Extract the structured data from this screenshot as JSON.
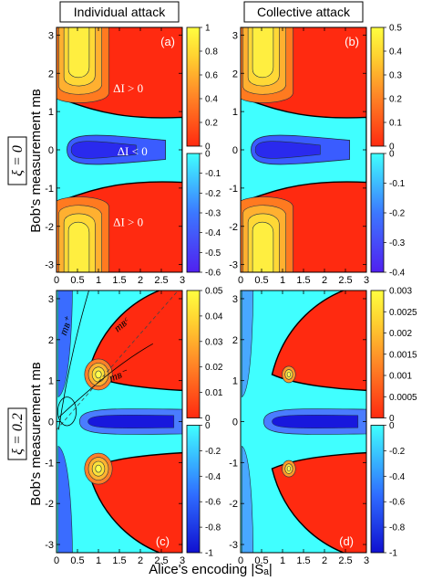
{
  "column_titles": [
    "Individual attack",
    "Collective attack"
  ],
  "row_labels": [
    "ξ = 0",
    "ξ = 0.2"
  ],
  "x_axis_label": "Alice's encoding |Sₐ|",
  "y_axis_label": "Bob's measurement mʙ",
  "colors": {
    "red": "#ff2a10",
    "cyan": "#40ffff",
    "blue": "#2020f0",
    "yellow": "#ffee30",
    "orange": "#f09030",
    "contour": "#203040",
    "sep": "#000000"
  },
  "chart_data": [
    {
      "type": "heatmap",
      "panel": "(a)",
      "title": "Individual attack",
      "row_label": "ξ = 0",
      "xlim": [
        0,
        3
      ],
      "ylim": [
        -3.2,
        3.2
      ],
      "x_ticks": [
        "0",
        "0.5",
        "1",
        "1.5",
        "2",
        "2.5",
        "3"
      ],
      "y_ticks": [
        "-3",
        "-2",
        "-1",
        "0",
        "1",
        "2",
        "3"
      ],
      "colorbar_positive": {
        "ticks": [
          "0",
          "0.2",
          "0.4",
          "0.6",
          "0.8",
          "1"
        ],
        "range": [
          0,
          1
        ]
      },
      "colorbar_negative": {
        "ticks": [
          "0",
          "-0.1",
          "-0.2",
          "-0.3",
          "-0.4",
          "-0.5",
          "-0.6"
        ],
        "range": [
          -0.6,
          0
        ]
      },
      "annotations": [
        "ΔI > 0",
        "ΔI < 0",
        "ΔI > 0"
      ]
    },
    {
      "type": "heatmap",
      "panel": "(b)",
      "title": "Collective attack",
      "row_label": "ξ = 0",
      "xlim": [
        0,
        3
      ],
      "ylim": [
        -3.2,
        3.2
      ],
      "x_ticks": [
        "0",
        "0.5",
        "1",
        "1.5",
        "2",
        "2.5",
        "3"
      ],
      "y_ticks": [
        "-3",
        "-2",
        "-1",
        "0",
        "1",
        "2",
        "3"
      ],
      "colorbar_positive": {
        "ticks": [
          "0",
          "0.1",
          "0.2",
          "0.3",
          "0.4",
          "0.5"
        ],
        "range": [
          0,
          0.5
        ]
      },
      "colorbar_negative": {
        "ticks": [
          "0",
          "-0.1",
          "-0.2",
          "-0.3",
          "-0.4"
        ],
        "range": [
          -0.4,
          0
        ]
      },
      "annotations": []
    },
    {
      "type": "heatmap",
      "panel": "(c)",
      "title": "Individual attack",
      "row_label": "ξ = 0.2",
      "xlim": [
        0,
        3
      ],
      "ylim": [
        -3.2,
        3.2
      ],
      "x_ticks": [
        "0",
        "0.5",
        "1",
        "1.5",
        "2",
        "2.5",
        "3"
      ],
      "y_ticks": [
        "-3",
        "-2",
        "-1",
        "0",
        "1",
        "2",
        "3"
      ],
      "colorbar_positive": {
        "ticks": [
          "0",
          "0.01",
          "0.02",
          "0.03",
          "0.04",
          "0.05"
        ],
        "range": [
          0,
          0.05
        ]
      },
      "colorbar_negative": {
        "ticks": [
          "0",
          "-0.2",
          "-0.4",
          "-0.6",
          "-0.8",
          "-1"
        ],
        "range": [
          -1,
          0
        ]
      },
      "annotations": [
        "mʙ⁺",
        "mʙᶜ",
        "mʙ⁻"
      ]
    },
    {
      "type": "heatmap",
      "panel": "(d)",
      "title": "Collective attack",
      "row_label": "ξ = 0.2",
      "xlim": [
        0,
        3
      ],
      "ylim": [
        -3.2,
        3.2
      ],
      "x_ticks": [
        "0",
        "0.5",
        "1",
        "1.5",
        "2",
        "2.5",
        "3"
      ],
      "y_ticks": [
        "-3",
        "-2",
        "-1",
        "0",
        "1",
        "2",
        "3"
      ],
      "colorbar_positive": {
        "ticks": [
          "0",
          "0.0005",
          "0.001",
          "0.0015",
          "0.002",
          "0.0025",
          "0.003"
        ],
        "range": [
          0,
          0.003
        ]
      },
      "colorbar_negative": {
        "ticks": [
          "0",
          "-0.2",
          "-0.4",
          "-0.6",
          "-0.8",
          "-1"
        ],
        "range": [
          -1,
          0
        ]
      },
      "annotations": []
    }
  ]
}
